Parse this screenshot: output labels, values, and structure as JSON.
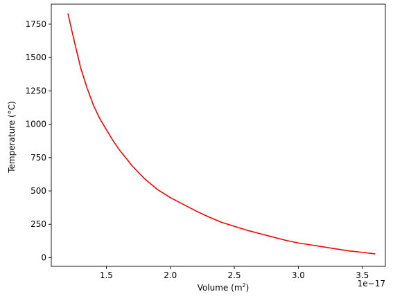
{
  "chart_data": {
    "type": "line",
    "title": "",
    "xlabel_main": "Volume (m",
    "xlabel_sup": "2",
    "xlabel_end": ")",
    "ylabel": "Temperature (°C)",
    "x_offset_text": "1e−17",
    "xlim": [
      1.07,
      3.68
    ],
    "ylim": [
      -65,
      1900
    ],
    "x_ticks": [
      1.5,
      2.0,
      2.5,
      3.0,
      3.5
    ],
    "x_tick_labels": [
      "1.5",
      "2.0",
      "2.5",
      "3.0",
      "3.5"
    ],
    "y_ticks": [
      0,
      250,
      500,
      750,
      1000,
      1250,
      1500,
      1750
    ],
    "y_tick_labels": [
      "0",
      "250",
      "500",
      "750",
      "1000",
      "1250",
      "1500",
      "1750"
    ],
    "grid": false,
    "legend": "none",
    "series": [
      {
        "color": "#ff0000",
        "x": [
          1.2,
          1.25,
          1.3,
          1.35,
          1.4,
          1.45,
          1.5,
          1.55,
          1.6,
          1.65,
          1.7,
          1.75,
          1.8,
          1.85,
          1.9,
          2.0,
          2.1,
          2.2,
          2.3,
          2.4,
          2.5,
          2.6,
          2.7,
          2.8,
          2.9,
          3.0,
          3.1,
          3.2,
          3.3,
          3.4,
          3.5,
          3.6
        ],
        "y": [
          1830,
          1620,
          1420,
          1270,
          1140,
          1040,
          960,
          880,
          810,
          750,
          690,
          640,
          590,
          550,
          510,
          450,
          400,
          350,
          305,
          265,
          235,
          205,
          180,
          155,
          130,
          110,
          95,
          80,
          65,
          50,
          40,
          28
        ]
      }
    ]
  }
}
